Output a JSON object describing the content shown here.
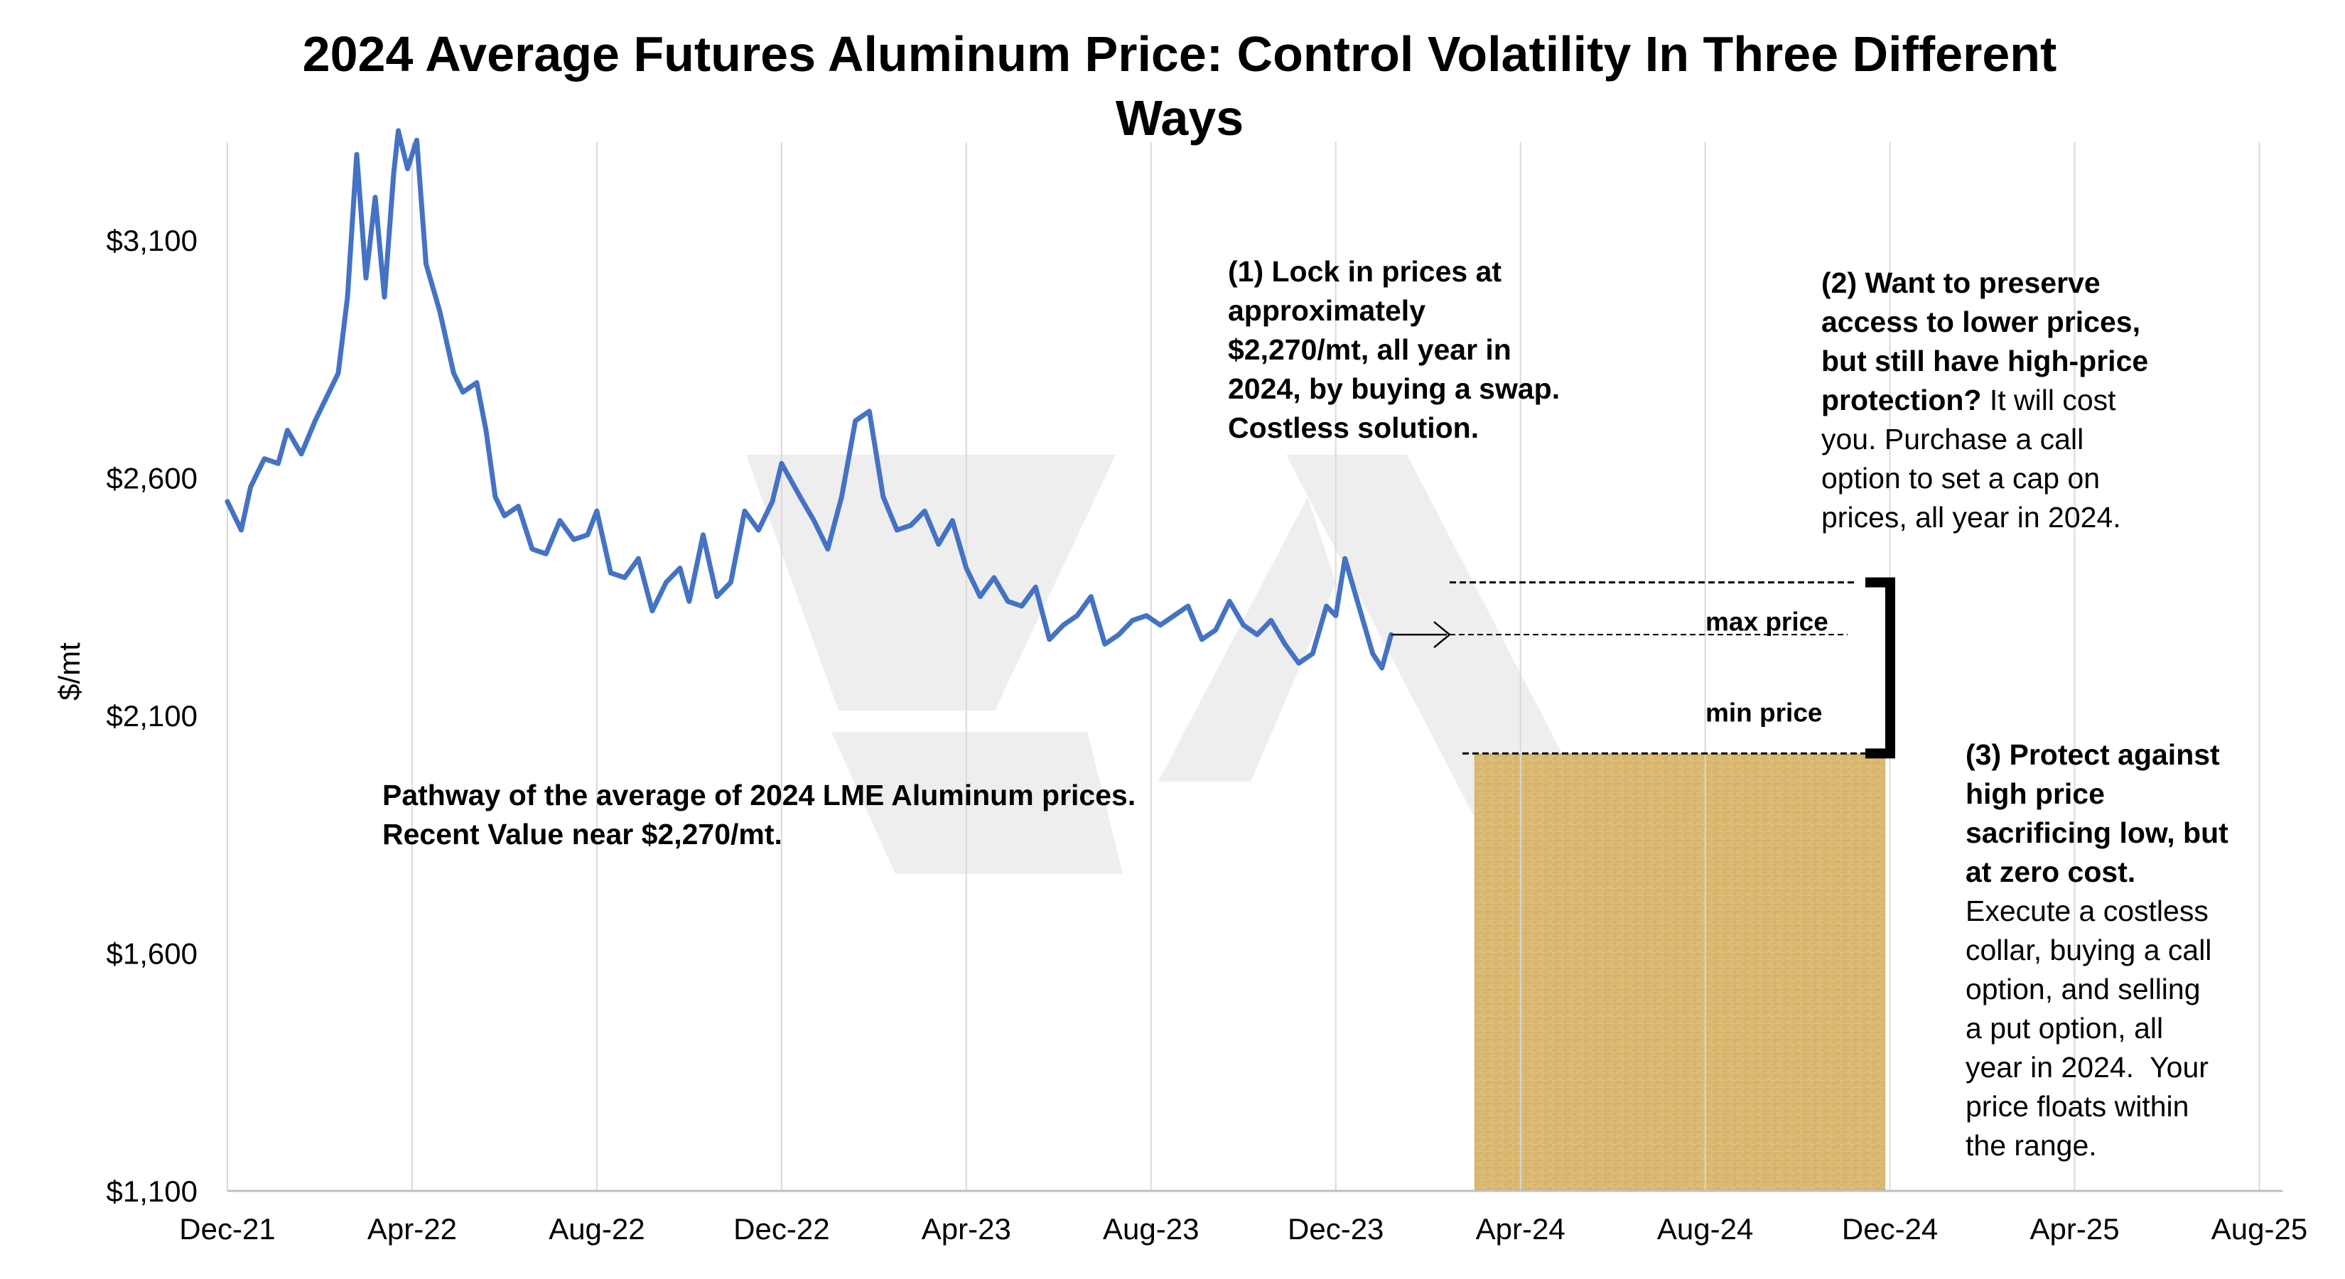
{
  "chart_data": {
    "type": "line",
    "title_line1": "2024 Average Futures Aluminum Price: Control Volatility In Three Different",
    "title_line2": "Ways",
    "ylabel": "$/mt",
    "xlabel": "",
    "ylim": [
      1100,
      3300
    ],
    "y_ticks": [
      {
        "value": 1100,
        "label": "$1,100"
      },
      {
        "value": 1600,
        "label": "$1,600"
      },
      {
        "value": 2100,
        "label": "$2,100"
      },
      {
        "value": 2600,
        "label": "$2,600"
      },
      {
        "value": 3100,
        "label": "$3,100"
      }
    ],
    "x_ticks": [
      {
        "month": 0,
        "label": "Dec-21"
      },
      {
        "month": 4,
        "label": "Apr-22"
      },
      {
        "month": 8,
        "label": "Aug-22"
      },
      {
        "month": 12,
        "label": "Dec-22"
      },
      {
        "month": 16,
        "label": "Apr-23"
      },
      {
        "month": 20,
        "label": "Aug-23"
      },
      {
        "month": 24,
        "label": "Dec-23"
      },
      {
        "month": 28,
        "label": "Apr-24"
      },
      {
        "month": 32,
        "label": "Aug-24"
      },
      {
        "month": 36,
        "label": "Dec-24"
      },
      {
        "month": 40,
        "label": "Apr-25"
      },
      {
        "month": 44,
        "label": "Aug-25"
      }
    ],
    "x_unit": "months since Dec-21",
    "xlim": [
      0,
      44.5
    ],
    "grid": "vertical",
    "line_color": "#4472C4",
    "series": [
      {
        "x": [
          0,
          0.3,
          0.5,
          0.8,
          1.1,
          1.3,
          1.6,
          1.9,
          2.1,
          2.4,
          2.6,
          2.8,
          3.0,
          3.2,
          3.4,
          3.6,
          3.7,
          3.9,
          4.1,
          4.3,
          4.6,
          4.9,
          5.1,
          5.4,
          5.6,
          5.8,
          6.0,
          6.3,
          6.6,
          6.9,
          7.2,
          7.5,
          7.8,
          8.0,
          8.3,
          8.6,
          8.9,
          9.2,
          9.5,
          9.8,
          10.0,
          10.3,
          10.6,
          10.9,
          11.2,
          11.5,
          11.8,
          12.0,
          12.4,
          12.7,
          13.0,
          13.3,
          13.6,
          13.9,
          14.2,
          14.5,
          14.8,
          15.1,
          15.4,
          15.7,
          16.0,
          16.3,
          16.6,
          16.9,
          17.2,
          17.5,
          17.8,
          18.1,
          18.4,
          18.7,
          19.0,
          19.3,
          19.6,
          19.9,
          20.2,
          20.5,
          20.8,
          21.1,
          21.4,
          21.7,
          22.0,
          22.3,
          22.6,
          22.9,
          23.2,
          23.5,
          23.8,
          24.0,
          24.2,
          24.5,
          24.8,
          25.0,
          25.2
        ],
        "y": [
          2550,
          2490,
          2580,
          2640,
          2630,
          2700,
          2650,
          2720,
          2760,
          2820,
          2980,
          3280,
          3020,
          3190,
          2980,
          3240,
          3330,
          3250,
          3310,
          3050,
          2950,
          2820,
          2780,
          2800,
          2700,
          2560,
          2520,
          2540,
          2450,
          2440,
          2510,
          2470,
          2480,
          2530,
          2400,
          2390,
          2430,
          2320,
          2380,
          2410,
          2340,
          2480,
          2350,
          2380,
          2530,
          2490,
          2550,
          2630,
          2560,
          2510,
          2450,
          2560,
          2720,
          2740,
          2560,
          2490,
          2500,
          2530,
          2460,
          2510,
          2410,
          2350,
          2390,
          2340,
          2330,
          2370,
          2260,
          2290,
          2310,
          2350,
          2250,
          2270,
          2300,
          2310,
          2290,
          2310,
          2330,
          2260,
          2280,
          2340,
          2290,
          2270,
          2300,
          2250,
          2210,
          2230,
          2330,
          2310,
          2430,
          2330,
          2230,
          2200,
          2270
        ]
      }
    ],
    "annotations": {
      "pathway_line1": "Pathway of the average of 2024 LME Aluminum prices.",
      "pathway_line2": "Recent Value near $2,270/mt.",
      "note1_lines": [
        "(1) Lock in prices at",
        "approximately",
        "$2,270/mt, all year in",
        "2024, by buying a swap.",
        "Costless solution."
      ],
      "note2_bold_lines": [
        "(2) Want to preserve",
        "access to lower prices,",
        "but still have high-price"
      ],
      "note2_bold_tail": "protection?",
      "note2_plain_head": " It will cost",
      "note2_plain_lines": [
        "you. Purchase a call",
        "option to set a cap on",
        "prices, all year in 2024."
      ],
      "note3_bold_lines": [
        "(3) Protect against",
        "high price",
        "sacrificing low, but",
        "at zero cost."
      ],
      "note3_plain_lines": [
        "Execute a costless",
        "collar, buying a call",
        "option, and selling",
        "a put option, all",
        "year in 2024.  Your",
        "price floats within",
        "the range."
      ],
      "max_price_label": "max price",
      "min_price_label": "min price"
    },
    "reference_levels": {
      "max": 2380,
      "mid": 2270,
      "min": 2020
    },
    "shaded_region": {
      "x_start_month": 27.0,
      "x_end_month": 35.9,
      "y_bottom": 1100,
      "y_top": 2020,
      "color": "#d9b870"
    }
  }
}
